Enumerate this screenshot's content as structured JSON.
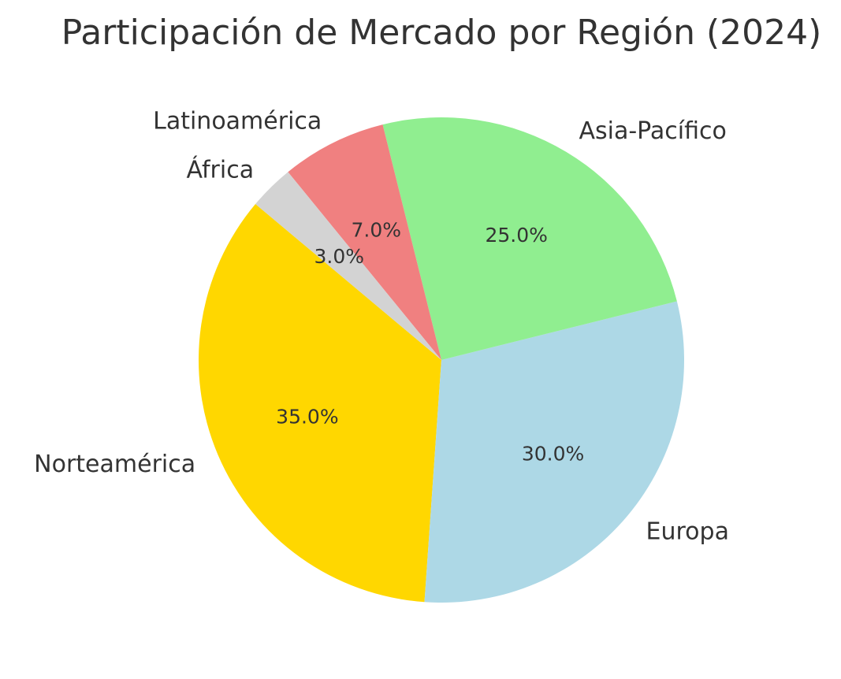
{
  "chart_data": {
    "type": "pie",
    "title": "Participación de Mercado por Región (2024)",
    "start_angle_deg": 140,
    "direction": "counterclockwise",
    "slices": [
      {
        "label": "Norteamérica",
        "value": 35.0,
        "pct_label": "35.0%",
        "color": "#FFD700"
      },
      {
        "label": "Europa",
        "value": 30.0,
        "pct_label": "30.0%",
        "color": "#ADD8E6"
      },
      {
        "label": "Asia-Pacífico",
        "value": 25.0,
        "pct_label": "25.0%",
        "color": "#90EE90"
      },
      {
        "label": "Latinoamérica",
        "value": 7.0,
        "pct_label": "7.0%",
        "color": "#F08080"
      },
      {
        "label": "África",
        "value": 3.0,
        "pct_label": "3.0%",
        "color": "#D3D3D3"
      }
    ]
  }
}
